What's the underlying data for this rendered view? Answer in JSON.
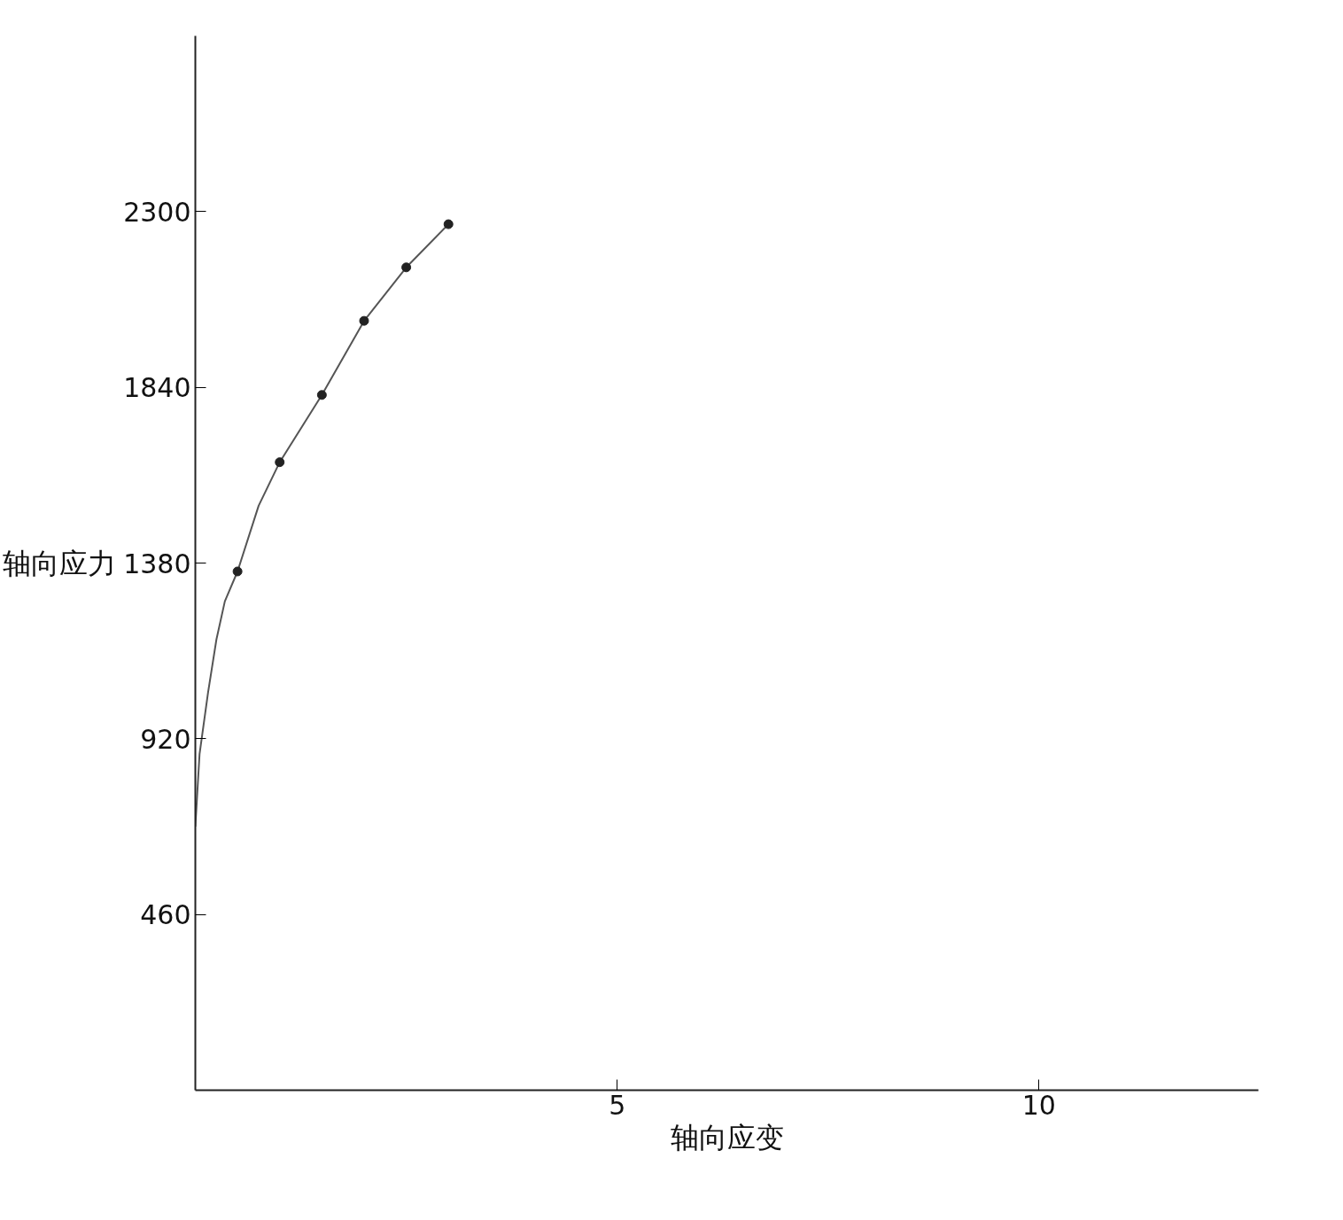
{
  "chart_data": {
    "type": "line",
    "xlabel": "轴向应变",
    "ylabel": "轴向应力",
    "xlim": [
      0,
      12.6
    ],
    "ylim": [
      0,
      2760
    ],
    "xticks": [
      5,
      10
    ],
    "yticks": [
      460,
      920,
      1380,
      1840,
      2300
    ],
    "grid": false,
    "series": [
      {
        "type": "line",
        "marker": "none",
        "color": "#555555",
        "x": [
          0,
          0.05,
          0.15,
          0.25,
          0.35,
          0.5,
          0.75,
          1,
          1.5,
          2,
          2.5,
          3
        ],
        "values": [
          690,
          880,
          1040,
          1180,
          1280,
          1358,
          1530,
          1644,
          1820,
          2014,
          2154,
          2267
        ]
      },
      {
        "type": "scatter",
        "marker": "circle",
        "color": "#222222",
        "x": [
          0.5,
          1,
          1.5,
          2,
          2.5,
          3
        ],
        "values": [
          1358,
          1644,
          1820,
          2014,
          2154,
          2267
        ]
      }
    ]
  }
}
